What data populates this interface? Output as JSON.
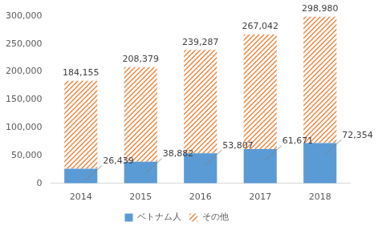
{
  "chart_data": {
    "type": "bar",
    "stacked": true,
    "categories": [
      "2014",
      "2015",
      "2016",
      "2017",
      "2018"
    ],
    "series": [
      {
        "name": "ベトナム人",
        "color": "#5b9bd5",
        "values": [
          26439,
          38882,
          53807,
          61671,
          72354
        ],
        "value_labels": [
          "26,439",
          "38,882",
          "53,807",
          "61,671",
          "72,354"
        ]
      },
      {
        "name": "その他",
        "color": "#ed7d31",
        "values": [
          157716,
          169497,
          185480,
          205371,
          226626
        ]
      }
    ],
    "totals": [
      {
        "value": 184155,
        "label": "184,155"
      },
      {
        "value": 208379,
        "label": "208,379"
      },
      {
        "value": 239287,
        "label": "239,287"
      },
      {
        "value": 267042,
        "label": "267,042"
      },
      {
        "value": 298980,
        "label": "298,980"
      }
    ],
    "data_labels": true,
    "legend": "bottom",
    "grid": false,
    "ylim": [
      0,
      300000
    ],
    "yticks": [
      0,
      {
        "value": 50000,
        "label": "50,000"
      },
      {
        "value": 100000,
        "label": "100,000"
      },
      {
        "value": 150000,
        "label": "150,000"
      },
      {
        "value": 200000,
        "label": "200,000"
      },
      {
        "value": 250000,
        "label": "250,000"
      },
      {
        "value": 300000,
        "label": "300,000"
      }
    ]
  }
}
